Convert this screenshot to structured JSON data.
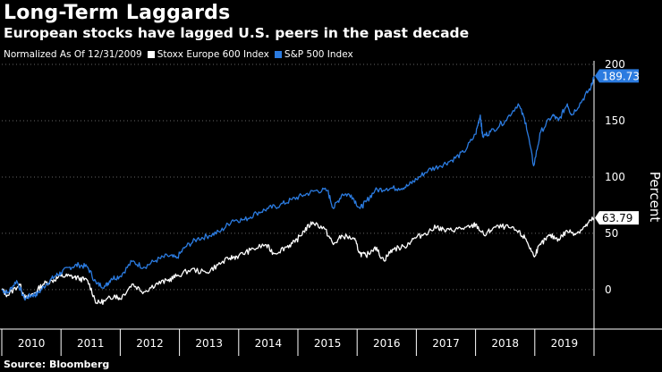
{
  "colors": {
    "background": "#000000",
    "text": "#ffffff",
    "sp500": "#2b7be0",
    "stoxx": "#ffffff",
    "gridline": "#666666"
  },
  "header": {
    "title": "Long-Term Laggards",
    "subtitle": "European stocks have lagged U.S. peers in the past decade"
  },
  "legend": {
    "note": "Normalized As Of 12/31/2009",
    "items": [
      {
        "label": "Stoxx Europe 600 Index",
        "color": "#ffffff"
      },
      {
        "label": "S&P 500 Index",
        "color": "#2b7be0"
      }
    ]
  },
  "footer": {
    "source": "Source: Bloomberg"
  },
  "chart_data": {
    "type": "line",
    "title": "Long-Term Laggards",
    "subtitle": "European stocks have lagged U.S. peers in the past decade",
    "xlabel": "",
    "ylabel": "Percent",
    "x_categories": [
      "2010",
      "2011",
      "2012",
      "2013",
      "2014",
      "2015",
      "2016",
      "2017",
      "2018",
      "2019"
    ],
    "xlim": [
      2010.0,
      2020.0
    ],
    "ylim": [
      -35,
      200
    ],
    "yticks": [
      0,
      50,
      100,
      150,
      200
    ],
    "grid": "horizontal dotted",
    "legend_position": "top-left",
    "series": [
      {
        "name": "S&P 500 Index",
        "color": "#2b7be0",
        "end_label": "189.73",
        "points": [
          [
            2010.0,
            0
          ],
          [
            2010.1,
            -3
          ],
          [
            2010.25,
            8
          ],
          [
            2010.38,
            -8
          ],
          [
            2010.5,
            -5
          ],
          [
            2010.6,
            -4
          ],
          [
            2010.75,
            5
          ],
          [
            2010.9,
            12
          ],
          [
            2011.0,
            15
          ],
          [
            2011.15,
            20
          ],
          [
            2011.3,
            22
          ],
          [
            2011.45,
            20
          ],
          [
            2011.6,
            5
          ],
          [
            2011.75,
            3
          ],
          [
            2011.85,
            10
          ],
          [
            2012.0,
            12
          ],
          [
            2012.2,
            25
          ],
          [
            2012.4,
            20
          ],
          [
            2012.6,
            26
          ],
          [
            2012.8,
            30
          ],
          [
            2012.95,
            28
          ],
          [
            2013.1,
            38
          ],
          [
            2013.3,
            45
          ],
          [
            2013.5,
            48
          ],
          [
            2013.7,
            52
          ],
          [
            2013.9,
            62
          ],
          [
            2014.1,
            62
          ],
          [
            2014.3,
            68
          ],
          [
            2014.5,
            72
          ],
          [
            2014.7,
            75
          ],
          [
            2014.9,
            80
          ],
          [
            2015.1,
            84
          ],
          [
            2015.3,
            88
          ],
          [
            2015.5,
            88
          ],
          [
            2015.6,
            72
          ],
          [
            2015.75,
            85
          ],
          [
            2015.9,
            84
          ],
          [
            2016.05,
            72
          ],
          [
            2016.15,
            78
          ],
          [
            2016.3,
            88
          ],
          [
            2016.5,
            90
          ],
          [
            2016.7,
            90
          ],
          [
            2016.85,
            92
          ],
          [
            2017.0,
            98
          ],
          [
            2017.2,
            106
          ],
          [
            2017.4,
            110
          ],
          [
            2017.6,
            115
          ],
          [
            2017.8,
            122
          ],
          [
            2018.0,
            138
          ],
          [
            2018.08,
            155
          ],
          [
            2018.12,
            136
          ],
          [
            2018.25,
            140
          ],
          [
            2018.5,
            150
          ],
          [
            2018.72,
            165
          ],
          [
            2018.85,
            148
          ],
          [
            2018.98,
            110
          ],
          [
            2019.1,
            140
          ],
          [
            2019.3,
            155
          ],
          [
            2019.4,
            150
          ],
          [
            2019.55,
            165
          ],
          [
            2019.62,
            155
          ],
          [
            2019.8,
            168
          ],
          [
            2019.95,
            180
          ],
          [
            2020.0,
            189.73
          ]
        ]
      },
      {
        "name": "Stoxx Europe 600 Index",
        "color": "#ffffff",
        "end_label": "63.79",
        "points": [
          [
            2010.0,
            0
          ],
          [
            2010.1,
            -5
          ],
          [
            2010.3,
            5
          ],
          [
            2010.4,
            -8
          ],
          [
            2010.55,
            -3
          ],
          [
            2010.7,
            5
          ],
          [
            2010.85,
            8
          ],
          [
            2011.0,
            12
          ],
          [
            2011.15,
            12
          ],
          [
            2011.3,
            10
          ],
          [
            2011.45,
            8
          ],
          [
            2011.6,
            -12
          ],
          [
            2011.75,
            -10
          ],
          [
            2011.9,
            -5
          ],
          [
            2012.0,
            -8
          ],
          [
            2012.2,
            5
          ],
          [
            2012.4,
            -2
          ],
          [
            2012.6,
            5
          ],
          [
            2012.8,
            8
          ],
          [
            2012.95,
            12
          ],
          [
            2013.2,
            18
          ],
          [
            2013.45,
            15
          ],
          [
            2013.65,
            22
          ],
          [
            2013.85,
            28
          ],
          [
            2014.0,
            30
          ],
          [
            2014.2,
            35
          ],
          [
            2014.45,
            40
          ],
          [
            2014.6,
            32
          ],
          [
            2014.8,
            38
          ],
          [
            2014.95,
            42
          ],
          [
            2015.1,
            52
          ],
          [
            2015.25,
            60
          ],
          [
            2015.45,
            54
          ],
          [
            2015.6,
            40
          ],
          [
            2015.75,
            48
          ],
          [
            2015.95,
            45
          ],
          [
            2016.05,
            32
          ],
          [
            2016.15,
            30
          ],
          [
            2016.3,
            38
          ],
          [
            2016.45,
            26
          ],
          [
            2016.6,
            36
          ],
          [
            2016.8,
            38
          ],
          [
            2016.95,
            45
          ],
          [
            2017.15,
            50
          ],
          [
            2017.35,
            56
          ],
          [
            2017.5,
            52
          ],
          [
            2017.7,
            54
          ],
          [
            2017.9,
            55
          ],
          [
            2018.0,
            58
          ],
          [
            2018.15,
            48
          ],
          [
            2018.3,
            55
          ],
          [
            2018.5,
            56
          ],
          [
            2018.7,
            52
          ],
          [
            2018.85,
            45
          ],
          [
            2018.98,
            30
          ],
          [
            2019.1,
            40
          ],
          [
            2019.25,
            48
          ],
          [
            2019.4,
            45
          ],
          [
            2019.55,
            52
          ],
          [
            2019.7,
            50
          ],
          [
            2019.85,
            56
          ],
          [
            2020.0,
            63.79
          ]
        ]
      }
    ]
  }
}
